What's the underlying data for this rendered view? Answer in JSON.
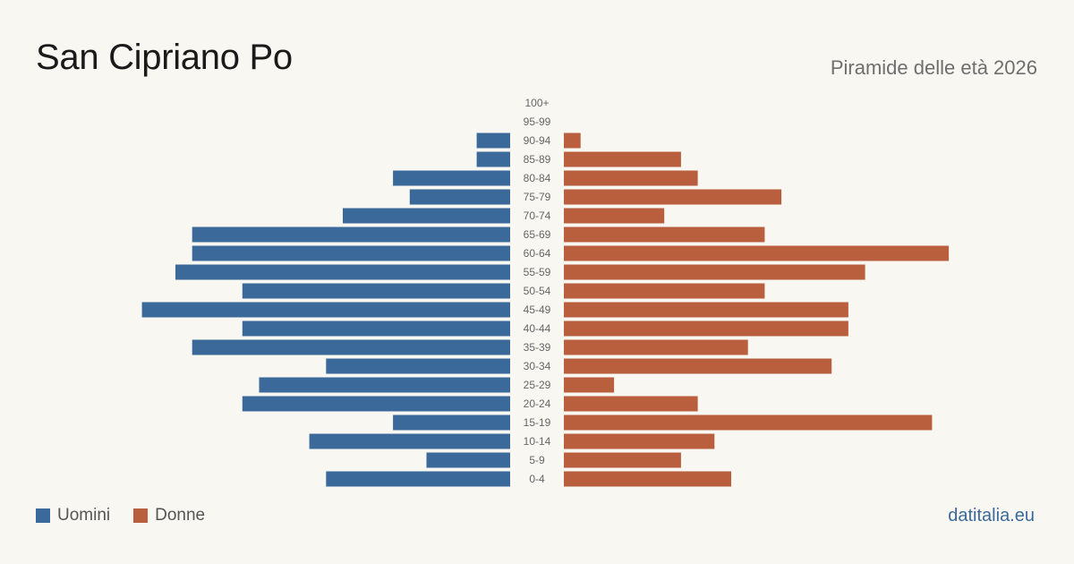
{
  "header": {
    "title": "San Cipriano Po",
    "subtitle": "Piramide delle età 2026"
  },
  "legend": {
    "men_label": "Uomini",
    "women_label": "Donne"
  },
  "footer": {
    "brand": "datitalia.eu"
  },
  "colors": {
    "men": "#3b6a9a",
    "women": "#b95f3e",
    "background": "#f9f7f2"
  },
  "chart_data": {
    "type": "bar",
    "orientation": "horizontal-pyramid",
    "categories": [
      "100+",
      "95-99",
      "90-94",
      "85-89",
      "80-84",
      "75-79",
      "70-74",
      "65-69",
      "60-64",
      "55-59",
      "50-54",
      "45-49",
      "40-44",
      "35-39",
      "30-34",
      "25-29",
      "20-24",
      "15-19",
      "10-14",
      "5-9",
      "0-4"
    ],
    "series": [
      {
        "name": "Uomini",
        "values": [
          0,
          0,
          2,
          2,
          7,
          6,
          10,
          19,
          19,
          20,
          16,
          22,
          16,
          19,
          11,
          15,
          16,
          7,
          12,
          5,
          11
        ]
      },
      {
        "name": "Donne",
        "values": [
          0,
          0,
          1,
          7,
          8,
          13,
          6,
          12,
          23,
          18,
          12,
          17,
          17,
          11,
          16,
          3,
          8,
          22,
          9,
          7,
          10
        ]
      }
    ],
    "legend_position": "bottom-left",
    "grid": false
  }
}
